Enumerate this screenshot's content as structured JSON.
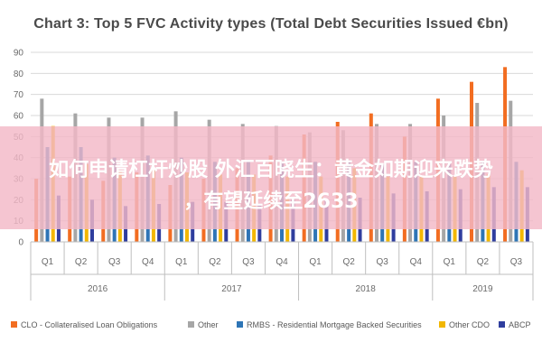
{
  "chart_data": {
    "type": "bar",
    "title": "Chart 3: Top 5 FVC Activity types (Total Debt Securities Issued €bn)",
    "ylim": [
      0,
      90
    ],
    "yticks": [
      0,
      10,
      20,
      30,
      40,
      50,
      60,
      70,
      80,
      90
    ],
    "grid": true,
    "legend_placement": "bottom",
    "categories": [
      "Q1",
      "Q2",
      "Q3",
      "Q4",
      "Q1",
      "Q2",
      "Q3",
      "Q4",
      "Q1",
      "Q2",
      "Q3",
      "Q4",
      "Q1",
      "Q2",
      "Q3"
    ],
    "years": [
      {
        "label": "2016",
        "count": 4
      },
      {
        "label": "2017",
        "count": 4
      },
      {
        "label": "2018",
        "count": 4
      },
      {
        "label": "2019",
        "count": 3
      }
    ],
    "series": [
      {
        "name": "CLO - Collateralised Loan Obligations",
        "color": "#F26D21",
        "values": [
          30,
          31,
          29,
          33,
          27,
          30,
          35,
          41,
          51,
          57,
          61,
          50,
          68,
          76,
          83
        ]
      },
      {
        "name": "Other",
        "color": "#A6A6A6",
        "values": [
          68,
          61,
          59,
          59,
          62,
          58,
          56,
          55,
          52,
          53,
          56,
          56,
          60,
          66,
          67
        ]
      },
      {
        "name": "RMBS - Residential Mortgage Backed Securities",
        "color": "#2E75B6",
        "values": [
          45,
          45,
          40,
          41,
          40,
          38,
          39,
          38,
          38,
          38,
          37,
          38,
          37,
          38,
          38
        ]
      },
      {
        "name": "Other CDO",
        "color": "#F2B700",
        "values": [
          55,
          37,
          34,
          34,
          33,
          32,
          32,
          31,
          31,
          35,
          31,
          31,
          31,
          32,
          34
        ]
      },
      {
        "name": "ABCP",
        "color": "#2F3E9E",
        "values": [
          22,
          20,
          17,
          18,
          19,
          19,
          18,
          20,
          20,
          21,
          23,
          24,
          25,
          26,
          26
        ]
      }
    ]
  },
  "overlay": {
    "line1": "如何申请杠杆炒股 外汇百晓生：黄金如期迎来跌势",
    "line2": "，有望延续至2633"
  },
  "colors": {
    "grid": "#D9D9D9",
    "axis": "#BFBFBF",
    "overlay": "#F3B8C7"
  }
}
